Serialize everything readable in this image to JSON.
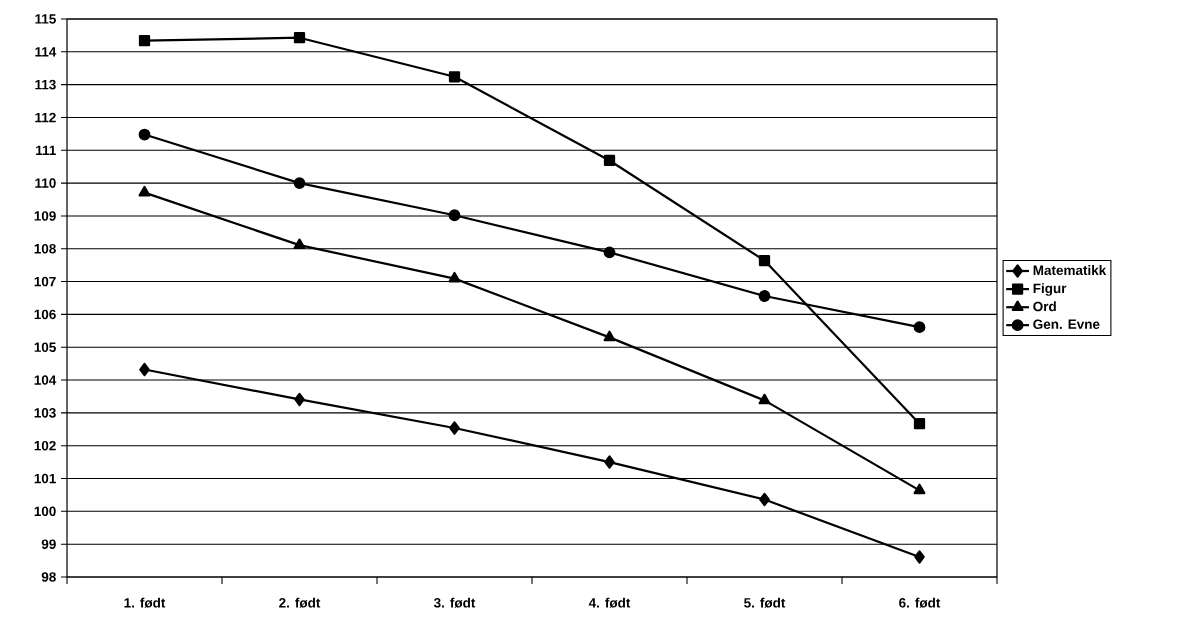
{
  "chart_data": {
    "type": "line",
    "categories": [
      "1. født",
      "2. født",
      "3. født",
      "4. født",
      "5. født",
      "6. født"
    ],
    "series": [
      {
        "name": "Matematikk",
        "color": "#000000",
        "marker": "diamond",
        "values": [
          104.32,
          103.41,
          102.54,
          101.5,
          100.36,
          98.61
        ]
      },
      {
        "name": "Figur",
        "color": "#000000",
        "marker": "square",
        "values": [
          114.34,
          114.43,
          113.24,
          110.69,
          107.64,
          102.67
        ]
      },
      {
        "name": "Ord",
        "color": "#000000",
        "marker": "triangle",
        "values": [
          109.71,
          108.11,
          107.09,
          105.3,
          103.38,
          100.64
        ]
      },
      {
        "name": "Gen. Evne",
        "color": "#000000",
        "marker": "circle",
        "values": [
          111.48,
          110.0,
          109.02,
          107.89,
          106.56,
          105.61
        ]
      }
    ],
    "ylim": [
      98,
      115
    ],
    "yticks": [
      98,
      99,
      100,
      101,
      102,
      103,
      104,
      105,
      106,
      107,
      108,
      109,
      110,
      111,
      112,
      113,
      114,
      115
    ],
    "grid": "y",
    "legend": "right",
    "line_style": "solid"
  }
}
